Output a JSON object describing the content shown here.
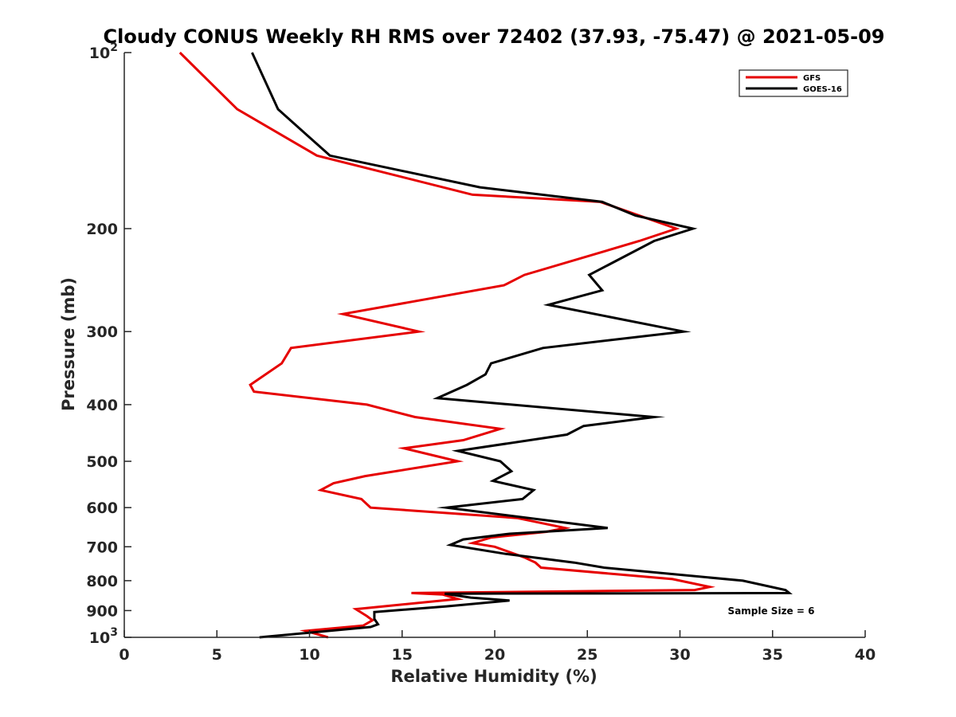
{
  "chart_data": {
    "type": "line",
    "title": "Cloudy CONUS Weekly RH RMS over 72402 (37.93, -75.47) @ 2021-05-09",
    "xlabel": "Relative Humidity (%)",
    "ylabel": "Pressure (mb)",
    "xlim": [
      0,
      40
    ],
    "ylim": [
      100,
      1000
    ],
    "yscale": "log",
    "y_reversed": true,
    "x_ticks": [
      0,
      5,
      10,
      15,
      20,
      25,
      30,
      35,
      40
    ],
    "y_ticks": [
      {
        "value": 100,
        "label": "10",
        "sup": "2"
      },
      {
        "value": 200,
        "label": "200",
        "sup": ""
      },
      {
        "value": 300,
        "label": "300",
        "sup": ""
      },
      {
        "value": 400,
        "label": "400",
        "sup": ""
      },
      {
        "value": 500,
        "label": "500",
        "sup": ""
      },
      {
        "value": 600,
        "label": "600",
        "sup": ""
      },
      {
        "value": 700,
        "label": "700",
        "sup": ""
      },
      {
        "value": 800,
        "label": "800",
        "sup": ""
      },
      {
        "value": 900,
        "label": "900",
        "sup": ""
      },
      {
        "value": 1000,
        "label": "10",
        "sup": "3"
      }
    ],
    "grid": false,
    "legend_position": "top-right",
    "annotation": "Sample Size = 6",
    "series": [
      {
        "name": "GFS",
        "color": "#e60000",
        "points": [
          [
            3.0,
            100
          ],
          [
            6.1,
            125
          ],
          [
            10.4,
            150
          ],
          [
            18.8,
            175
          ],
          [
            25.7,
            180
          ],
          [
            29.8,
            200
          ],
          [
            27.8,
            210
          ],
          [
            21.6,
            240
          ],
          [
            20.5,
            250
          ],
          [
            11.8,
            280
          ],
          [
            15.9,
            300
          ],
          [
            9.0,
            320
          ],
          [
            8.5,
            340
          ],
          [
            6.8,
            370
          ],
          [
            7.0,
            380
          ],
          [
            13.1,
            400
          ],
          [
            15.7,
            420
          ],
          [
            20.3,
            440
          ],
          [
            18.3,
            460
          ],
          [
            15.1,
            475
          ],
          [
            18.0,
            500
          ],
          [
            13.0,
            530
          ],
          [
            11.3,
            545
          ],
          [
            10.6,
            560
          ],
          [
            12.8,
            580
          ],
          [
            13.3,
            600
          ],
          [
            21.2,
            625
          ],
          [
            23.8,
            650
          ],
          [
            22.8,
            660
          ],
          [
            19.8,
            675
          ],
          [
            18.8,
            690
          ],
          [
            20.0,
            700
          ],
          [
            21.6,
            730
          ],
          [
            22.2,
            745
          ],
          [
            22.5,
            760
          ],
          [
            29.6,
            795
          ],
          [
            31.6,
            820
          ],
          [
            30.8,
            830
          ],
          [
            15.5,
            840
          ],
          [
            17.2,
            845
          ],
          [
            18.0,
            860
          ],
          [
            12.5,
            895
          ],
          [
            13.1,
            920
          ],
          [
            13.4,
            935
          ],
          [
            12.9,
            955
          ],
          [
            9.8,
            975
          ],
          [
            11.0,
            1000
          ]
        ]
      },
      {
        "name": "GOES-16",
        "color": "#000000",
        "points": [
          [
            6.9,
            100
          ],
          [
            8.3,
            125
          ],
          [
            11.1,
            150
          ],
          [
            19.2,
            170
          ],
          [
            25.8,
            180
          ],
          [
            27.6,
            190
          ],
          [
            30.7,
            200
          ],
          [
            28.6,
            210
          ],
          [
            25.1,
            240
          ],
          [
            25.8,
            255
          ],
          [
            22.9,
            270
          ],
          [
            30.2,
            300
          ],
          [
            22.6,
            320
          ],
          [
            19.8,
            340
          ],
          [
            19.5,
            355
          ],
          [
            18.5,
            370
          ],
          [
            16.9,
            390
          ],
          [
            28.6,
            420
          ],
          [
            24.8,
            435
          ],
          [
            23.9,
            450
          ],
          [
            18.0,
            480
          ],
          [
            20.3,
            500
          ],
          [
            20.9,
            520
          ],
          [
            19.9,
            540
          ],
          [
            22.1,
            560
          ],
          [
            21.5,
            580
          ],
          [
            17.4,
            600
          ],
          [
            26.1,
            650
          ],
          [
            20.8,
            665
          ],
          [
            18.3,
            680
          ],
          [
            17.6,
            695
          ],
          [
            20.6,
            720
          ],
          [
            24.3,
            745
          ],
          [
            25.9,
            760
          ],
          [
            33.4,
            800
          ],
          [
            35.7,
            830
          ],
          [
            35.9,
            840
          ],
          [
            17.3,
            842
          ],
          [
            18.7,
            855
          ],
          [
            20.8,
            865
          ],
          [
            17.4,
            885
          ],
          [
            13.5,
            905
          ],
          [
            13.5,
            930
          ],
          [
            13.7,
            950
          ],
          [
            13.3,
            960
          ],
          [
            7.3,
            1000
          ]
        ]
      }
    ]
  }
}
